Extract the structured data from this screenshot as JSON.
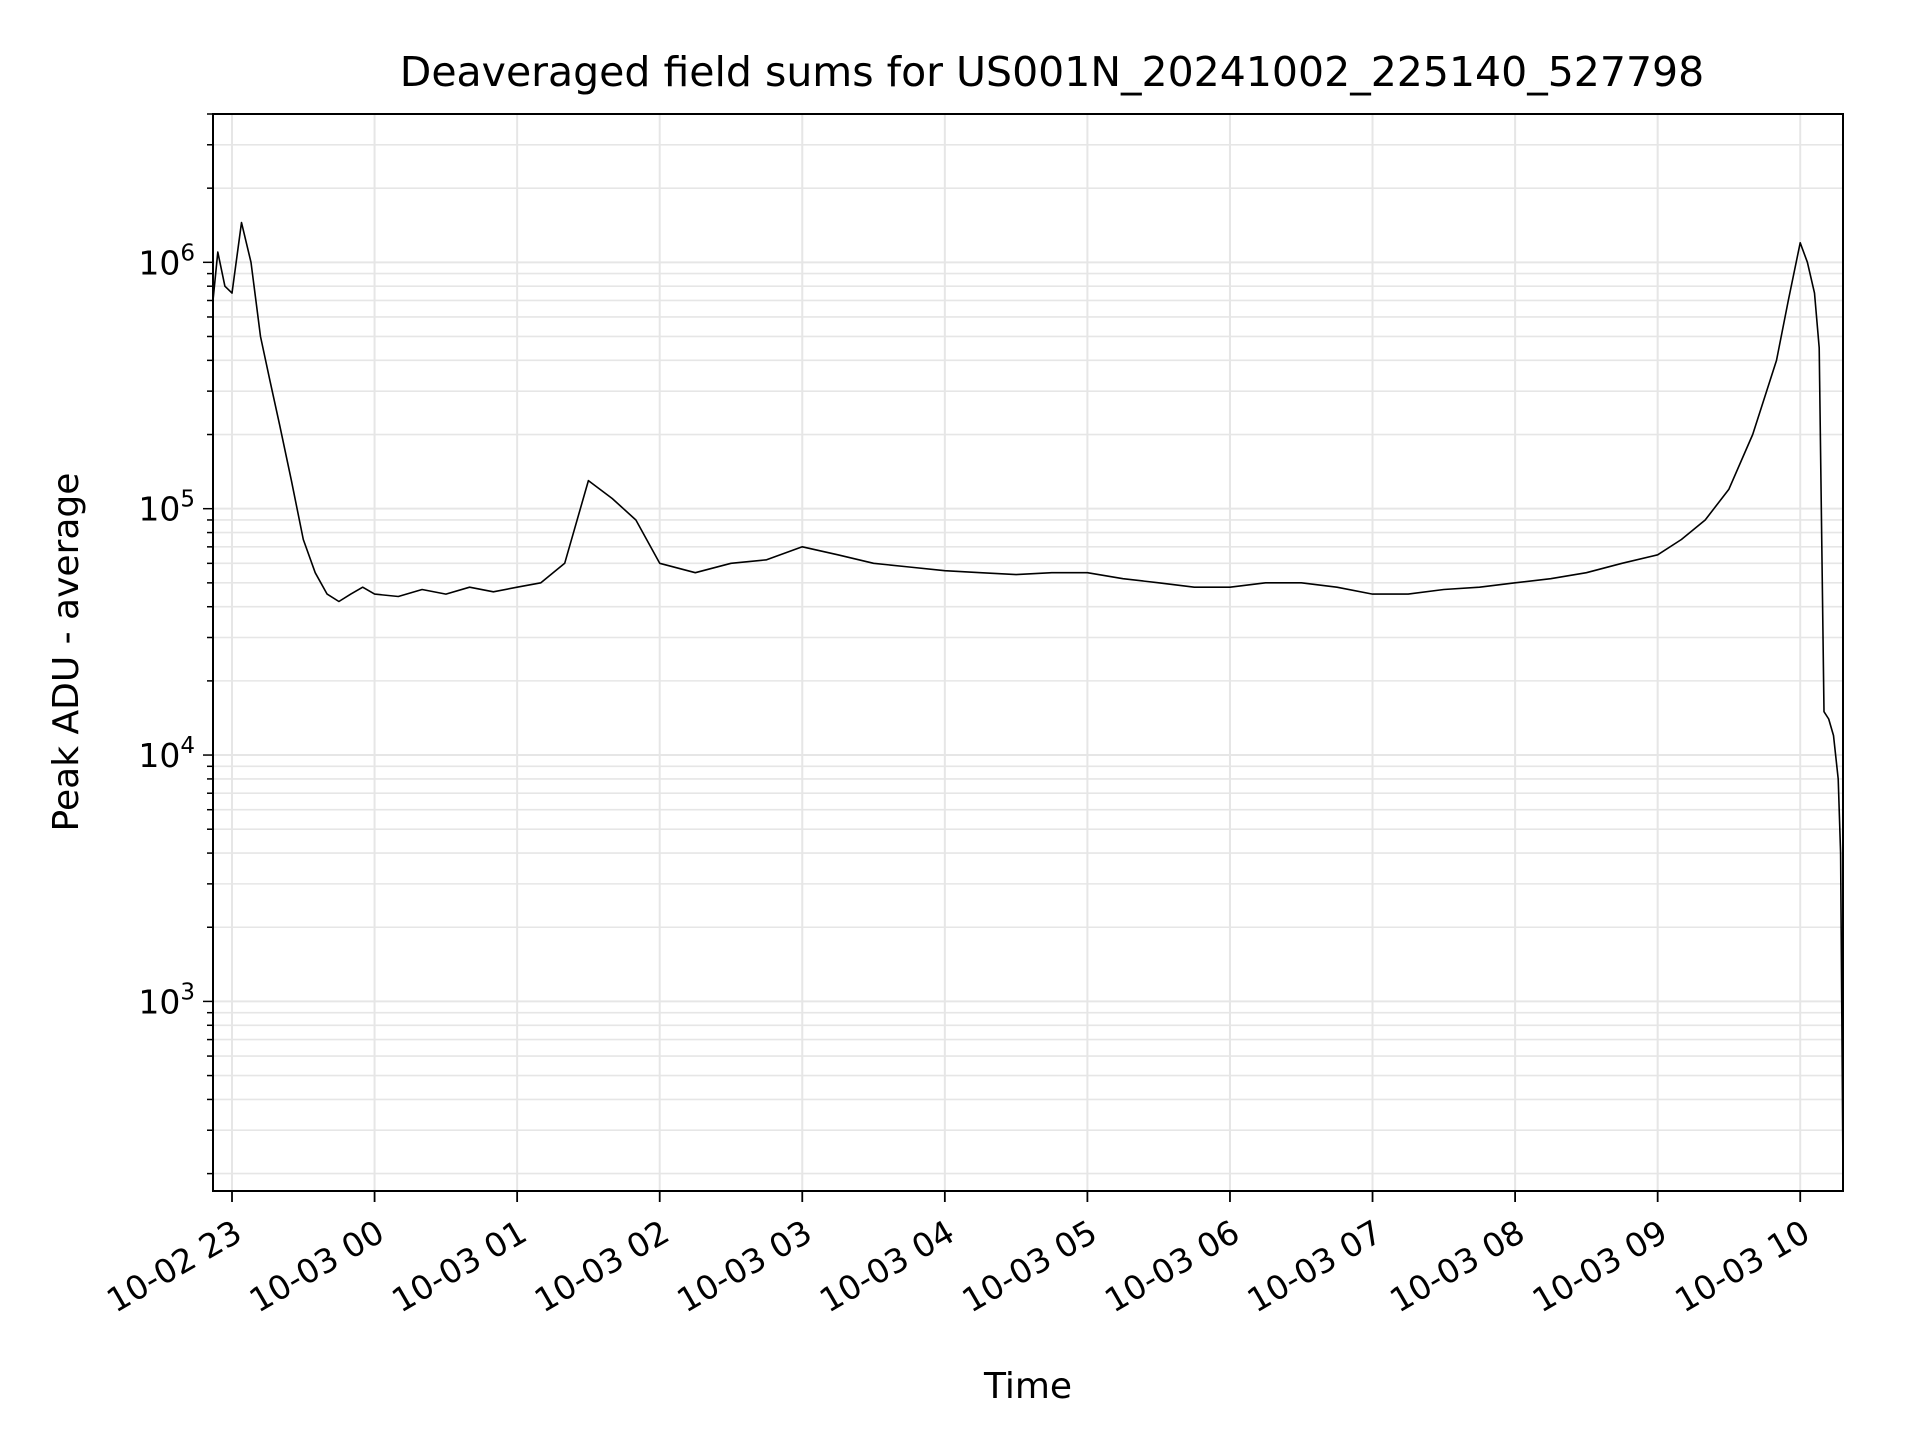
{
  "chart_data": {
    "type": "line",
    "title": "Deaveraged field sums for US001N_20241002_225140_527798",
    "xlabel": "Time",
    "ylabel": "Peak ADU - average",
    "xscale": "time",
    "yscale": "log",
    "xlim": [
      "2024-10-02 22:52",
      "2024-10-03 10:18"
    ],
    "ylim": [
      170,
      4000000
    ],
    "x_ticks": [
      "10-02 23",
      "10-03 00",
      "10-03 01",
      "10-03 02",
      "10-03 03",
      "10-03 04",
      "10-03 05",
      "10-03 06",
      "10-03 07",
      "10-03 08",
      "10-03 09",
      "10-03 10"
    ],
    "y_ticks": [
      {
        "value": 1000,
        "base": "10",
        "exp": "3"
      },
      {
        "value": 10000,
        "base": "10",
        "exp": "4"
      },
      {
        "value": 100000,
        "base": "10",
        "exp": "5"
      },
      {
        "value": 1000000,
        "base": "10",
        "exp": "6"
      }
    ],
    "grid": true,
    "legend": "none",
    "line_color": "#000000",
    "grid_color": "#e6e6e6",
    "series": [
      {
        "x": [
          "2024-10-02 22:52",
          "2024-10-02 22:54",
          "2024-10-02 22:57",
          "2024-10-02 23:00",
          "2024-10-02 23:04",
          "2024-10-02 23:08",
          "2024-10-02 23:12",
          "2024-10-02 23:16",
          "2024-10-02 23:20",
          "2024-10-02 23:25",
          "2024-10-02 23:30",
          "2024-10-02 23:35",
          "2024-10-02 23:40",
          "2024-10-02 23:45",
          "2024-10-02 23:50",
          "2024-10-02 23:55",
          "2024-10-03 00:00",
          "2024-10-03 00:10",
          "2024-10-03 00:20",
          "2024-10-03 00:30",
          "2024-10-03 00:40",
          "2024-10-03 00:50",
          "2024-10-03 01:00",
          "2024-10-03 01:10",
          "2024-10-03 01:20",
          "2024-10-03 01:30",
          "2024-10-03 01:40",
          "2024-10-03 01:50",
          "2024-10-03 02:00",
          "2024-10-03 02:15",
          "2024-10-03 02:30",
          "2024-10-03 02:45",
          "2024-10-03 03:00",
          "2024-10-03 03:15",
          "2024-10-03 03:30",
          "2024-10-03 03:45",
          "2024-10-03 04:00",
          "2024-10-03 04:15",
          "2024-10-03 04:30",
          "2024-10-03 04:45",
          "2024-10-03 05:00",
          "2024-10-03 05:15",
          "2024-10-03 05:30",
          "2024-10-03 05:45",
          "2024-10-03 06:00",
          "2024-10-03 06:15",
          "2024-10-03 06:30",
          "2024-10-03 06:45",
          "2024-10-03 07:00",
          "2024-10-03 07:15",
          "2024-10-03 07:30",
          "2024-10-03 07:45",
          "2024-10-03 08:00",
          "2024-10-03 08:15",
          "2024-10-03 08:30",
          "2024-10-03 08:45",
          "2024-10-03 09:00",
          "2024-10-03 09:10",
          "2024-10-03 09:20",
          "2024-10-03 09:30",
          "2024-10-03 09:40",
          "2024-10-03 09:50",
          "2024-10-03 09:55",
          "2024-10-03 10:00",
          "2024-10-03 10:03",
          "2024-10-03 10:06",
          "2024-10-03 10:08",
          "2024-10-03 10:10",
          "2024-10-03 10:12",
          "2024-10-03 10:14",
          "2024-10-03 10:16",
          "2024-10-03 10:17",
          "2024-10-03 10:18"
        ],
        "y": [
          700000,
          1100000,
          800000,
          750000,
          1450000,
          1000000,
          500000,
          330000,
          220000,
          130000,
          75000,
          55000,
          45000,
          42000,
          45000,
          48000,
          45000,
          44000,
          47000,
          45000,
          48000,
          46000,
          48000,
          50000,
          60000,
          130000,
          110000,
          90000,
          60000,
          55000,
          60000,
          62000,
          70000,
          65000,
          60000,
          58000,
          56000,
          55000,
          54000,
          55000,
          55000,
          52000,
          50000,
          48000,
          48000,
          50000,
          50000,
          48000,
          45000,
          45000,
          47000,
          48000,
          50000,
          52000,
          55000,
          60000,
          65000,
          75000,
          90000,
          120000,
          200000,
          400000,
          700000,
          1200000,
          1000000,
          750000,
          450000,
          15000,
          14000,
          12000,
          8000,
          4000,
          200
        ]
      }
    ]
  }
}
